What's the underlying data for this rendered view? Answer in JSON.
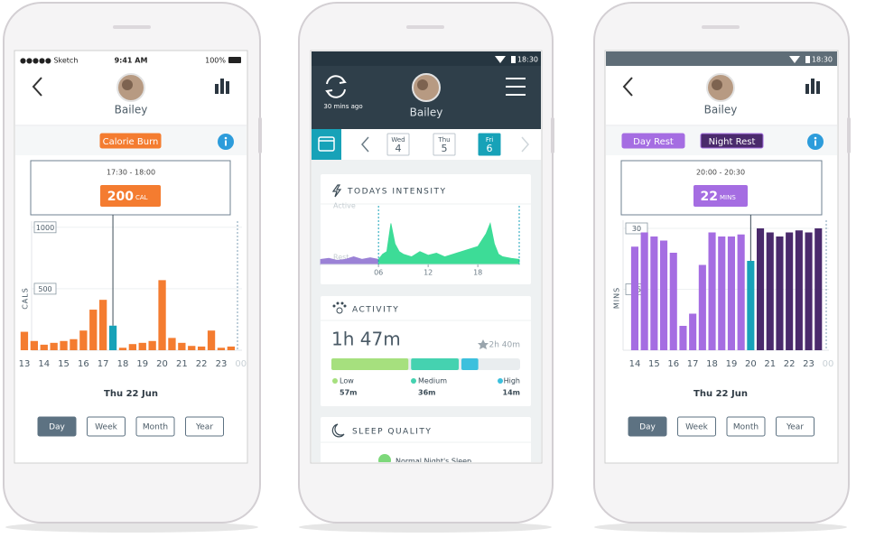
{
  "screens": [
    {
      "status_bar": {
        "carrier": "●●●●● Sketch",
        "time": "9:41 AM",
        "battery": "100%"
      },
      "profile_name": "Bailey",
      "date": "Thu 22 Jun",
      "periods": [
        "Day",
        "Week",
        "Month",
        "Year"
      ]
    },
    {
      "status_bar": {
        "time": "18:30"
      },
      "sync_label": "30 mins ago",
      "profile_name": "Bailey",
      "days": [
        {
          "weekday": "Wed",
          "day": "4"
        },
        {
          "weekday": "Thu",
          "day": "5"
        },
        {
          "weekday": "Fri",
          "day": "6"
        }
      ],
      "sleep": {
        "title": "SLEEP QUALITY",
        "status": "Normal Night's Sleep"
      }
    },
    {
      "status_bar": {
        "time": "18:30"
      },
      "profile_name": "Bailey",
      "date": "Thu 22 Jun",
      "periods": [
        "Day",
        "Week",
        "Month",
        "Year"
      ]
    }
  ],
  "chart_data": [
    {
      "type": "bar",
      "categories": [
        "13",
        null,
        "14",
        null,
        "15",
        null,
        "16",
        null,
        "17",
        null,
        "18",
        null,
        "19",
        null,
        "20",
        null,
        "21",
        null,
        "22",
        null,
        "23",
        null,
        "00"
      ],
      "series": [
        {
          "name": "Calorie Burn",
          "color": "#f47c30",
          "values": [
            150,
            75,
            45,
            60,
            75,
            90,
            160,
            330,
            410,
            200,
            20,
            50,
            60,
            75,
            570,
            100,
            60,
            35,
            30,
            160,
            20,
            30,
            null
          ]
        }
      ],
      "highlight_index": 9,
      "highlight_color": "#17a2b8",
      "tooltip": {
        "range": "17:30 - 18:00",
        "unit": "CAL"
      },
      "ylabel": "CALS",
      "ylim": [
        0,
        1050
      ],
      "yticks": [
        500,
        1000
      ],
      "grid": true
    },
    {
      "type": "area",
      "title": "TODAYS INTENSITY",
      "series": [
        {
          "color": "#9b82d6",
          "x": [
            -1,
            0,
            1,
            2,
            3,
            4,
            5,
            6
          ],
          "values": [
            1,
            1.2,
            0.8,
            1,
            1.5,
            1,
            1.3,
            1
          ]
        },
        {
          "color": "#3ddc97",
          "x": [
            6,
            6.5,
            7,
            7.5,
            8,
            8.5,
            9,
            10,
            11,
            12,
            13,
            14,
            15,
            16,
            17,
            18,
            19,
            19.5,
            20,
            20.5,
            21,
            22,
            23
          ],
          "values": [
            1,
            2,
            2.5,
            8,
            4,
            2.5,
            2,
            1.5,
            2.5,
            1.8,
            2.2,
            1.5,
            2,
            2.5,
            3,
            3.5,
            6,
            8,
            4,
            2,
            1.5,
            1.2,
            1
          ]
        }
      ],
      "xlim": [
        -1,
        23
      ],
      "xticks": [
        {
          "value": 6,
          "label": "06"
        },
        {
          "value": 12,
          "label": "12"
        },
        {
          "value": 18,
          "label": "18"
        }
      ],
      "ylim": [
        0,
        10
      ],
      "yticks": [
        {
          "value": 0,
          "label": "Rest"
        },
        {
          "value": 10,
          "label": "Active"
        }
      ]
    },
    {
      "type": "stacked-progress",
      "title": "ACTIVITY",
      "total_label": "1h 47m",
      "goal_label": "2h 40m",
      "categories": [
        "Low",
        "Medium",
        "High"
      ],
      "values": [
        57,
        36,
        14
      ],
      "value_labels": [
        "57m",
        "36m",
        "14m"
      ],
      "colors": [
        "#a6e07e",
        "#45d2b0",
        "#3cc0dd"
      ],
      "xlim": [
        0,
        135
      ]
    },
    {
      "type": "bar",
      "categories": [
        "14",
        null,
        "15",
        null,
        "16",
        null,
        "17",
        null,
        "18",
        null,
        "19",
        null,
        "20",
        null,
        "21",
        null,
        "22",
        null,
        "23",
        null,
        "00"
      ],
      "series": [
        {
          "name": "Day Rest",
          "color": "#a56de2",
          "values": [
            25.5,
            29,
            28,
            27,
            24,
            6,
            9,
            21,
            29,
            28,
            28,
            28.5,
            22,
            null,
            null,
            null,
            null,
            null,
            null,
            null,
            null
          ]
        },
        {
          "name": "Night Rest",
          "color": "#4a2a6c",
          "values": [
            null,
            null,
            null,
            null,
            null,
            null,
            null,
            null,
            null,
            null,
            null,
            null,
            null,
            30,
            29,
            28,
            29,
            29.5,
            29,
            30,
            null
          ]
        }
      ],
      "highlight_index": 12,
      "highlight_color": "#17a2b8",
      "tooltip": {
        "range": "20:00 - 20:30",
        "unit": "MINS"
      },
      "ylabel": "MINS",
      "ylim": [
        0,
        32
      ],
      "yticks": [
        15,
        30
      ],
      "grid": true
    }
  ]
}
